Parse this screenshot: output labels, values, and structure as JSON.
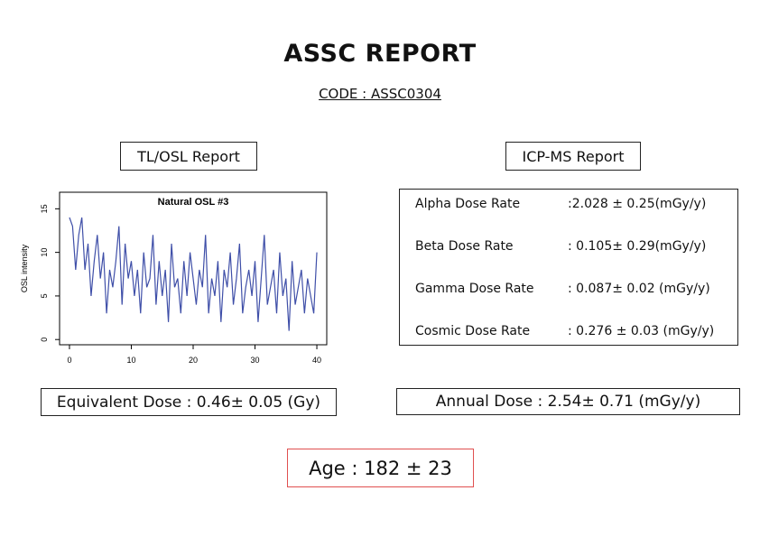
{
  "header": {
    "title": "ASSC REPORT",
    "code": "CODE : ASSC0304"
  },
  "tl_osl": {
    "title": "TL/OSL Report",
    "equivalent_dose": "Equivalent Dose : 0.46± 0.05 (Gy)"
  },
  "chart_data": {
    "type": "line",
    "title": "Natural OSL #3",
    "y_label": "OSL intensity",
    "x": [
      0,
      0.5,
      1,
      1.5,
      2,
      2.5,
      3,
      3.5,
      4,
      4.5,
      5,
      5.5,
      6,
      6.5,
      7,
      7.5,
      8,
      8.5,
      9,
      9.5,
      10,
      10.5,
      11,
      11.5,
      12,
      12.5,
      13,
      13.5,
      14,
      14.5,
      15,
      15.5,
      16,
      16.5,
      17,
      17.5,
      18,
      18.5,
      19,
      19.5,
      20,
      20.5,
      21,
      21.5,
      22,
      22.5,
      23,
      23.5,
      24,
      24.5,
      25,
      25.5,
      26,
      26.5,
      27,
      27.5,
      28,
      28.5,
      29,
      29.5,
      30,
      30.5,
      31,
      31.5,
      32,
      32.5,
      33,
      33.5,
      34,
      34.5,
      35,
      35.5,
      36,
      36.5,
      37,
      37.5,
      38,
      38.5,
      39,
      39.5,
      40
    ],
    "series": [
      {
        "name": "Natural OSL",
        "color": "#3f4fa8",
        "values": [
          14,
          13,
          8,
          12,
          14,
          8,
          11,
          5,
          9,
          12,
          7,
          10,
          3,
          8,
          6,
          9,
          13,
          4,
          11,
          7,
          9,
          5,
          8,
          3,
          10,
          6,
          7,
          12,
          4,
          9,
          5,
          8,
          2,
          11,
          6,
          7,
          3,
          9,
          5,
          10,
          7,
          4,
          8,
          6,
          12,
          3,
          7,
          5,
          9,
          2,
          8,
          6,
          10,
          4,
          7,
          11,
          3,
          6,
          8,
          5,
          9,
          2,
          7,
          12,
          4,
          6,
          8,
          3,
          10,
          5,
          7,
          1,
          9,
          4,
          6,
          8,
          3,
          7,
          5,
          3,
          10
        ]
      }
    ],
    "xlim": [
      -1.6,
      41.6
    ],
    "ylim": [
      -0.6,
      16.9
    ],
    "xticks": [
      0,
      10,
      20,
      30,
      40
    ],
    "yticks": [
      0,
      5,
      10,
      15
    ]
  },
  "icp_ms": {
    "title": "ICP-MS Report",
    "rows": [
      [
        "Alpha Dose Rate",
        ":2.028 ± 0.25(mGy/y)"
      ],
      [
        "Beta Dose Rate",
        ": 0.105± 0.29(mGy/y)"
      ],
      [
        "Gamma Dose Rate",
        ": 0.087± 0.02 (mGy/y)"
      ],
      [
        "Cosmic Dose Rate",
        ": 0.276 ± 0.03 (mGy/y)"
      ]
    ],
    "annual_dose": "Annual Dose : 2.54± 0.71 (mGy/y)"
  },
  "age": "Age : 182 ± 23"
}
